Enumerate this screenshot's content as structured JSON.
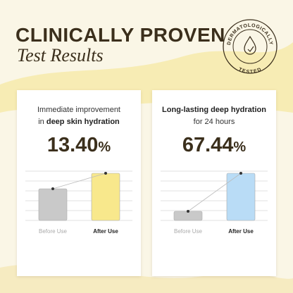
{
  "header": {
    "title": "CLINICALLY PROVEN",
    "subtitle": "Test Results"
  },
  "badge": {
    "top": "DERMATOLOGICALLY",
    "bottom": "TESTED"
  },
  "panels": [
    {
      "intro": [
        [
          {
            "text": "Immediate improvement",
            "bold": false
          }
        ],
        [
          {
            "text": "in ",
            "bold": false
          },
          {
            "text": "deep skin hydration",
            "bold": true
          }
        ]
      ],
      "figure": "13.40",
      "unit": "%",
      "before_label": "Before Use",
      "after_label": "After Use",
      "after_color": "#f8e88c"
    },
    {
      "intro": [
        [
          {
            "text": "Long-lasting deep hydration",
            "bold": true
          }
        ],
        [
          {
            "text": "for  24 hours",
            "bold": false
          }
        ]
      ],
      "figure": "67.44",
      "unit": "%",
      "before_label": "Before Use",
      "after_label": "After Use",
      "after_color": "#b9dcf6"
    }
  ]
}
